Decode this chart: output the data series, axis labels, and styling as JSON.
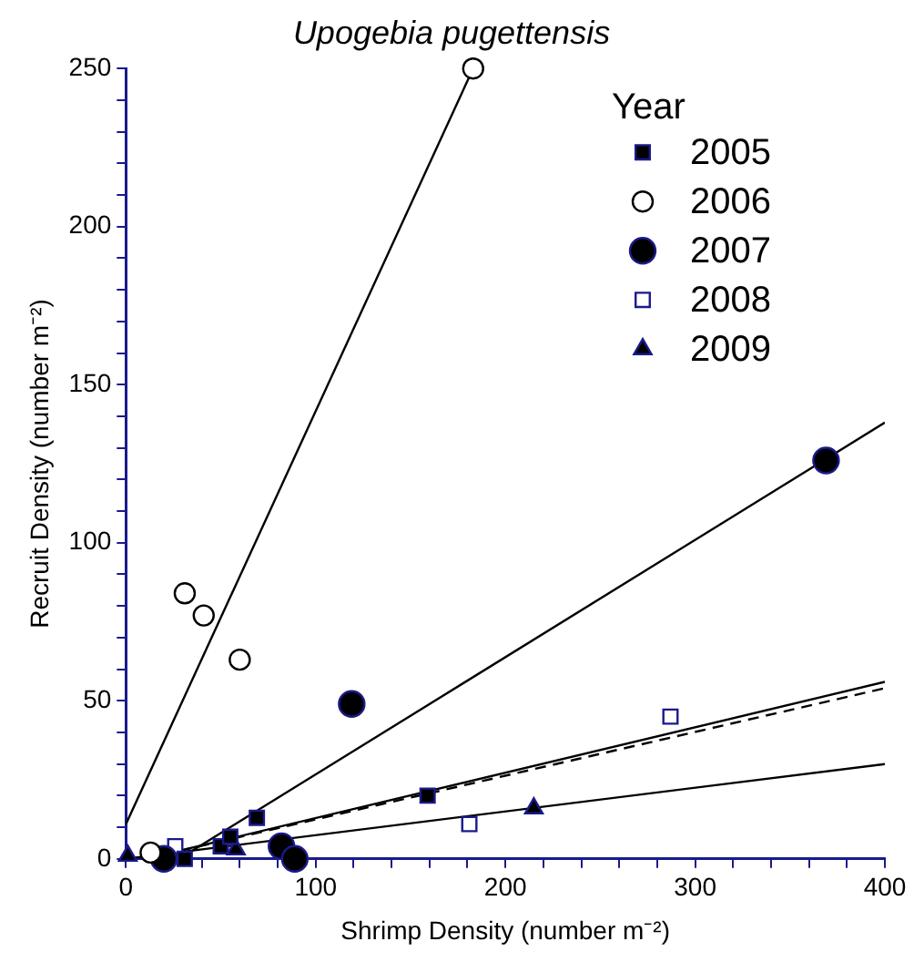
{
  "chart_data": {
    "type": "scatter",
    "title": "Upogebia pugettensis",
    "xlabel": "Shrimp Density (number m⁻²)",
    "ylabel": "Recruit Density (number m⁻²)",
    "legend_title": "Year",
    "legend": "top right",
    "grid": false,
    "xlim": [
      0,
      400
    ],
    "ylim": [
      0,
      250
    ],
    "xticks": [
      0,
      {
        "value": 20,
        "label": null
      },
      {
        "value": 40,
        "label": null
      },
      {
        "value": 60,
        "label": null
      },
      {
        "value": 80,
        "label": null
      },
      100,
      {
        "value": 120,
        "label": null
      },
      {
        "value": 140,
        "label": null
      },
      {
        "value": 160,
        "label": null
      },
      {
        "value": 180,
        "label": null
      },
      200,
      {
        "value": 220,
        "label": null
      },
      {
        "value": 240,
        "label": null
      },
      {
        "value": 260,
        "label": null
      },
      {
        "value": 280,
        "label": null
      },
      300,
      {
        "value": 320,
        "label": null
      },
      {
        "value": 340,
        "label": null
      },
      {
        "value": 360,
        "label": null
      },
      {
        "value": 380,
        "label": null
      },
      400
    ],
    "yticks": [
      0,
      {
        "value": 10,
        "label": null
      },
      {
        "value": 20,
        "label": null
      },
      {
        "value": 30,
        "label": null
      },
      {
        "value": 40,
        "label": null
      },
      50,
      {
        "value": 60,
        "label": null
      },
      {
        "value": 70,
        "label": null
      },
      {
        "value": 80,
        "label": null
      },
      {
        "value": 90,
        "label": null
      },
      100,
      {
        "value": 110,
        "label": null
      },
      {
        "value": 120,
        "label": null
      },
      {
        "value": 130,
        "label": null
      },
      {
        "value": 140,
        "label": null
      },
      150,
      {
        "value": 160,
        "label": null
      },
      {
        "value": 170,
        "label": null
      },
      {
        "value": 180,
        "label": null
      },
      {
        "value": 190,
        "label": null
      },
      200,
      {
        "value": 210,
        "label": null
      },
      {
        "value": 220,
        "label": null
      },
      {
        "value": 230,
        "label": null
      },
      {
        "value": 240,
        "label": null
      },
      250
    ],
    "series": [
      {
        "name": "2005",
        "marker": "square",
        "color": "#000000",
        "x": [
          31,
          50,
          55,
          69,
          159
        ],
        "values": [
          0,
          4,
          7,
          13,
          20
        ]
      },
      {
        "name": "2006",
        "marker": "circle",
        "color": "#ffffff",
        "x": [
          13,
          31,
          41,
          60,
          183
        ],
        "values": [
          2,
          84,
          77,
          63,
          250
        ]
      },
      {
        "name": "2007",
        "marker": "circle",
        "color": "#000000",
        "x": [
          20,
          82,
          89,
          119,
          369
        ],
        "values": [
          0,
          4,
          0,
          49,
          126
        ]
      },
      {
        "name": "2008",
        "marker": "square",
        "color": "#ffffff",
        "x": [
          26,
          181,
          287
        ],
        "values": [
          4,
          11,
          45
        ]
      },
      {
        "name": "2009",
        "marker": "triangle",
        "color": "#000000",
        "x": [
          1,
          58,
          215
        ],
        "values": [
          1,
          3,
          16
        ]
      },
      {
        "type": "line",
        "line_style": "solid",
        "color": "#000000",
        "x": [
          10,
          400
        ],
        "values": [
          0,
          56
        ]
      },
      {
        "type": "line",
        "line_style": "solid",
        "color": "#000000",
        "x": [
          0,
          183
        ],
        "values": [
          11,
          250
        ]
      },
      {
        "type": "line",
        "line_style": "solid",
        "color": "#000000",
        "x": [
          28,
          400
        ],
        "values": [
          0,
          138
        ]
      },
      {
        "type": "line",
        "line_style": "dashed",
        "color": "#000000",
        "x": [
          10,
          400
        ],
        "values": [
          0,
          54
        ]
      },
      {
        "type": "line",
        "line_style": "solid",
        "color": "#000000",
        "x": [
          0,
          400
        ],
        "values": [
          0,
          30
        ]
      }
    ]
  }
}
